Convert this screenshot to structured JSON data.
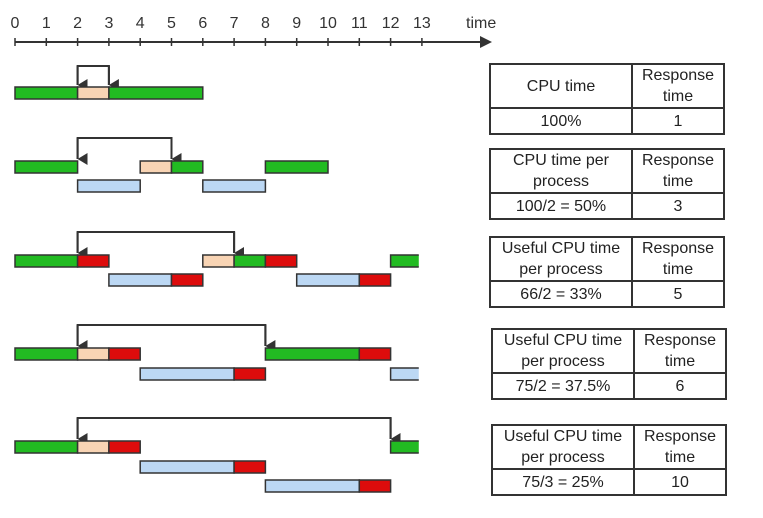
{
  "timeline": {
    "ticks": [
      "0",
      "1",
      "2",
      "3",
      "4",
      "5",
      "6",
      "7",
      "8",
      "9",
      "10",
      "11",
      "12",
      "13"
    ],
    "label": "time"
  },
  "colors": {
    "running": "#22bb22",
    "overhead": "#f8d4b4",
    "ready": "#bcd8f4",
    "wasted": "#dd0c0c",
    "outline": "#333333"
  },
  "scenarios": [
    {
      "arrow": {
        "from": 2,
        "to": 3
      },
      "rows": [
        [
          {
            "s": 0,
            "e": 2,
            "kind": "running"
          },
          {
            "s": 2,
            "e": 3,
            "kind": "overhead"
          },
          {
            "s": 3,
            "e": 6,
            "kind": "running"
          }
        ]
      ],
      "table": {
        "h1": "CPU time",
        "h2": "Response time",
        "v1": "100%",
        "v2": "1"
      }
    },
    {
      "arrow": {
        "from": 2,
        "to": 5
      },
      "rows": [
        [
          {
            "s": 0,
            "e": 2,
            "kind": "running"
          },
          {
            "s": 4,
            "e": 5,
            "kind": "overhead"
          },
          {
            "s": 5,
            "e": 6,
            "kind": "running"
          },
          {
            "s": 8,
            "e": 10,
            "kind": "running"
          }
        ],
        [
          {
            "s": 2,
            "e": 4,
            "kind": "ready"
          },
          {
            "s": 6,
            "e": 8,
            "kind": "ready"
          }
        ]
      ],
      "table": {
        "h1": "CPU time per process",
        "h2": "Response time",
        "v1": "100/2 = 50%",
        "v2": "3"
      }
    },
    {
      "arrow": {
        "from": 2,
        "to": 7
      },
      "rows": [
        [
          {
            "s": 0,
            "e": 2,
            "kind": "running"
          },
          {
            "s": 2,
            "e": 3,
            "kind": "wasted"
          },
          {
            "s": 6,
            "e": 7,
            "kind": "overhead"
          },
          {
            "s": 7,
            "e": 8,
            "kind": "running"
          },
          {
            "s": 8,
            "e": 9,
            "kind": "wasted"
          },
          {
            "s": 12,
            "e": 12.9,
            "kind": "running",
            "open": true
          }
        ],
        [
          {
            "s": 3,
            "e": 5,
            "kind": "ready"
          },
          {
            "s": 5,
            "e": 6,
            "kind": "wasted"
          },
          {
            "s": 9,
            "e": 11,
            "kind": "ready"
          },
          {
            "s": 11,
            "e": 12,
            "kind": "wasted"
          }
        ]
      ],
      "table": {
        "h1": "Useful CPU time per process",
        "h2": "Response time",
        "v1": "66/2 = 33%",
        "v2": "5"
      }
    },
    {
      "arrow": {
        "from": 2,
        "to": 8
      },
      "rows": [
        [
          {
            "s": 0,
            "e": 2,
            "kind": "running"
          },
          {
            "s": 2,
            "e": 3,
            "kind": "overhead"
          },
          {
            "s": 3,
            "e": 4,
            "kind": "wasted"
          },
          {
            "s": 8,
            "e": 11,
            "kind": "running"
          },
          {
            "s": 11,
            "e": 12,
            "kind": "wasted"
          }
        ],
        [
          {
            "s": 4,
            "e": 7,
            "kind": "ready"
          },
          {
            "s": 7,
            "e": 8,
            "kind": "wasted"
          },
          {
            "s": 12,
            "e": 12.9,
            "kind": "ready",
            "open": true
          }
        ]
      ],
      "table": {
        "h1": "Useful CPU time per process",
        "h2": "Response time",
        "v1": "75/2 = 37.5%",
        "v2": "6"
      }
    },
    {
      "arrow": {
        "from": 2,
        "to": 12
      },
      "rows": [
        [
          {
            "s": 0,
            "e": 2,
            "kind": "running"
          },
          {
            "s": 2,
            "e": 3,
            "kind": "overhead"
          },
          {
            "s": 3,
            "e": 4,
            "kind": "wasted"
          },
          {
            "s": 12,
            "e": 12.9,
            "kind": "running",
            "open": true
          }
        ],
        [
          {
            "s": 4,
            "e": 7,
            "kind": "ready"
          },
          {
            "s": 7,
            "e": 8,
            "kind": "wasted"
          }
        ],
        [
          {
            "s": 8,
            "e": 11,
            "kind": "ready"
          },
          {
            "s": 11,
            "e": 12,
            "kind": "wasted"
          }
        ]
      ],
      "table": {
        "h1": "Useful CPU time per process",
        "h2": "Response time",
        "v1": "75/3 = 25%",
        "v2": "10"
      }
    }
  ]
}
